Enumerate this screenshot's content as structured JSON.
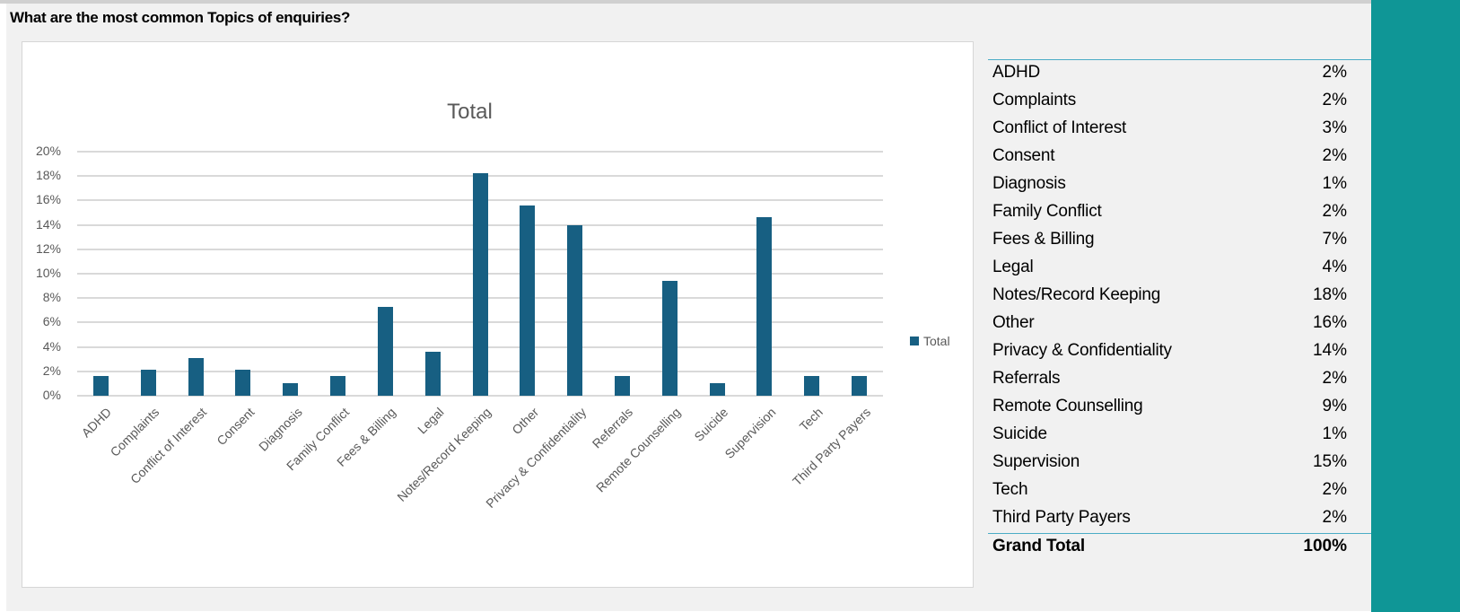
{
  "page": {
    "question": "What are the most common Topics of enquiries?",
    "colors": {
      "bar": "#175F82",
      "accent_panel": "#0F9696",
      "table_rule": "#4BACC6",
      "sheet_bg": "#F1F1F1"
    }
  },
  "chart_data": {
    "type": "bar",
    "title": "Total",
    "xlabel": "",
    "ylabel": "",
    "ylim": [
      0,
      0.2
    ],
    "yticks": [
      "0%",
      "2%",
      "4%",
      "6%",
      "8%",
      "10%",
      "12%",
      "14%",
      "16%",
      "18%",
      "20%"
    ],
    "grid": true,
    "legend_position": "right",
    "legend": [
      "Total"
    ],
    "categories": [
      "ADHD",
      "Complaints",
      "Conflict of Interest",
      "Consent",
      "Diagnosis",
      "Family Conflict",
      "Fees & Billing",
      "Legal",
      "Notes/Record Keeping",
      "Other",
      "Privacy & Confidentiality",
      "Referrals",
      "Remote Counselling",
      "Suicide",
      "Supervision",
      "Tech",
      "Third Party Payers"
    ],
    "series": [
      {
        "name": "Total",
        "values": [
          0.016,
          0.021,
          0.031,
          0.021,
          0.01,
          0.016,
          0.073,
          0.036,
          0.182,
          0.156,
          0.14,
          0.016,
          0.094,
          0.01,
          0.146,
          0.016,
          0.016
        ]
      }
    ]
  },
  "pivot_table": {
    "rows": [
      {
        "label": "ADHD",
        "value": "2%"
      },
      {
        "label": "Complaints",
        "value": "2%"
      },
      {
        "label": "Conflict of Interest",
        "value": "3%"
      },
      {
        "label": "Consent",
        "value": "2%"
      },
      {
        "label": "Diagnosis",
        "value": "1%"
      },
      {
        "label": "Family Conflict",
        "value": "2%"
      },
      {
        "label": "Fees & Billing",
        "value": "7%"
      },
      {
        "label": "Legal",
        "value": "4%"
      },
      {
        "label": "Notes/Record Keeping",
        "value": "18%"
      },
      {
        "label": "Other",
        "value": "16%"
      },
      {
        "label": "Privacy & Confidentiality",
        "value": "14%"
      },
      {
        "label": "Referrals",
        "value": "2%"
      },
      {
        "label": "Remote Counselling",
        "value": "9%"
      },
      {
        "label": "Suicide",
        "value": "1%"
      },
      {
        "label": "Supervision",
        "value": "15%"
      },
      {
        "label": "Tech",
        "value": "2%"
      },
      {
        "label": "Third Party Payers",
        "value": "2%"
      }
    ],
    "grand_total": {
      "label": "Grand Total",
      "value": "100%"
    }
  }
}
